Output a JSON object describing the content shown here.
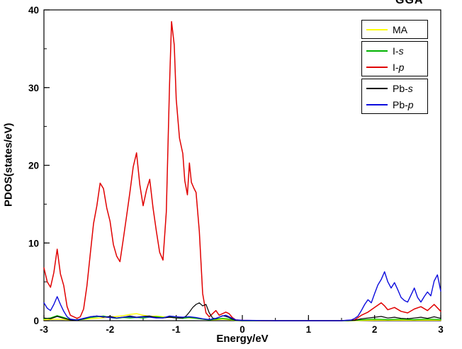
{
  "figure": {
    "annotation_top_right": "GGA",
    "xlabel": "Energy/eV",
    "ylabel": "PDOS(states/eV)"
  },
  "legend": {
    "items": [
      {
        "prefix": "MA",
        "symbol": "",
        "series": 0
      },
      {
        "prefix": "I-",
        "symbol": "s",
        "series": 1
      },
      {
        "prefix": "I-",
        "symbol": "p",
        "series": 2
      },
      {
        "prefix": "Pb-",
        "symbol": "s",
        "series": 3
      },
      {
        "prefix": "Pb-",
        "symbol": "p",
        "series": 4
      }
    ]
  },
  "chart_data": {
    "type": "line",
    "title": "",
    "xlabel": "Energy/eV",
    "ylabel": "PDOS(states/eV)",
    "annotation": "GGA",
    "xlim": [
      -3,
      3
    ],
    "ylim": [
      0,
      40
    ],
    "xticks": [
      -3,
      -2,
      -1,
      0,
      1,
      2,
      3
    ],
    "yticks": [
      0,
      10,
      20,
      30,
      40
    ],
    "x_minor_step": 0.5,
    "y_minor_step": 5,
    "grid": false,
    "legend_position": "upper-right",
    "series": [
      {
        "name": "MA",
        "color": "#ffff00",
        "width": 1.4,
        "points": [
          [
            -3,
            0.12
          ],
          [
            -2.8,
            0.2
          ],
          [
            -2.6,
            0.1
          ],
          [
            -2.4,
            0.18
          ],
          [
            -2.2,
            0.3
          ],
          [
            -2.0,
            0.45
          ],
          [
            -1.9,
            0.55
          ],
          [
            -1.8,
            0.65
          ],
          [
            -1.7,
            0.8
          ],
          [
            -1.6,
            0.9
          ],
          [
            -1.5,
            0.7
          ],
          [
            -1.4,
            0.55
          ],
          [
            -1.3,
            0.6
          ],
          [
            -1.2,
            0.5
          ],
          [
            -1.1,
            0.45
          ],
          [
            -1.0,
            0.5
          ],
          [
            -0.9,
            0.4
          ],
          [
            -0.8,
            0.35
          ],
          [
            -0.7,
            0.3
          ],
          [
            -0.6,
            0.2
          ],
          [
            -0.5,
            0.12
          ],
          [
            -0.4,
            0.12
          ],
          [
            -0.3,
            0.2
          ],
          [
            -0.2,
            0.12
          ],
          [
            -0.1,
            0.05
          ],
          [
            0,
            0
          ],
          [
            1.0,
            0
          ],
          [
            1.6,
            0
          ],
          [
            2.0,
            0.06
          ],
          [
            2.5,
            0.06
          ],
          [
            3.0,
            0.06
          ]
        ]
      },
      {
        "name": "I-s",
        "color": "#00b200",
        "width": 1.4,
        "points": [
          [
            -3,
            0.25
          ],
          [
            -2.9,
            0.35
          ],
          [
            -2.8,
            0.65
          ],
          [
            -2.7,
            0.4
          ],
          [
            -2.6,
            0.12
          ],
          [
            -2.5,
            0.08
          ],
          [
            -2.4,
            0.2
          ],
          [
            -2.3,
            0.4
          ],
          [
            -2.2,
            0.5
          ],
          [
            -2.1,
            0.6
          ],
          [
            -2.0,
            0.4
          ],
          [
            -1.9,
            0.3
          ],
          [
            -1.8,
            0.4
          ],
          [
            -1.7,
            0.35
          ],
          [
            -1.6,
            0.4
          ],
          [
            -1.5,
            0.35
          ],
          [
            -1.4,
            0.45
          ],
          [
            -1.3,
            0.5
          ],
          [
            -1.2,
            0.4
          ],
          [
            -1.1,
            0.5
          ],
          [
            -1.0,
            0.35
          ],
          [
            -0.9,
            0.3
          ],
          [
            -0.8,
            0.4
          ],
          [
            -0.7,
            0.3
          ],
          [
            -0.6,
            0.2
          ],
          [
            -0.5,
            0.1
          ],
          [
            -0.4,
            0.2
          ],
          [
            -0.3,
            0.3
          ],
          [
            -0.2,
            0.2
          ],
          [
            -0.1,
            0.05
          ],
          [
            0,
            0
          ],
          [
            1.0,
            0
          ],
          [
            1.6,
            0
          ],
          [
            1.8,
            0.12
          ],
          [
            2.0,
            0.2
          ],
          [
            2.2,
            0.15
          ],
          [
            2.4,
            0.2
          ],
          [
            2.6,
            0.15
          ],
          [
            2.8,
            0.2
          ],
          [
            3.0,
            0.15
          ]
        ]
      },
      {
        "name": "I-p",
        "color": "#e00000",
        "width": 1.5,
        "points": [
          [
            -3,
            6.8
          ],
          [
            -2.95,
            5.0
          ],
          [
            -2.9,
            4.3
          ],
          [
            -2.85,
            6.2
          ],
          [
            -2.8,
            9.2
          ],
          [
            -2.75,
            6.0
          ],
          [
            -2.7,
            4.5
          ],
          [
            -2.65,
            1.8
          ],
          [
            -2.6,
            0.7
          ],
          [
            -2.5,
            0.3
          ],
          [
            -2.45,
            0.5
          ],
          [
            -2.4,
            1.5
          ],
          [
            -2.35,
            4.5
          ],
          [
            -2.3,
            8.5
          ],
          [
            -2.25,
            12.5
          ],
          [
            -2.2,
            14.8
          ],
          [
            -2.15,
            17.7
          ],
          [
            -2.1,
            17.0
          ],
          [
            -2.05,
            14.5
          ],
          [
            -2.0,
            12.8
          ],
          [
            -1.95,
            9.8
          ],
          [
            -1.9,
            8.3
          ],
          [
            -1.85,
            7.6
          ],
          [
            -1.8,
            10.5
          ],
          [
            -1.75,
            13.5
          ],
          [
            -1.7,
            16.5
          ],
          [
            -1.65,
            19.8
          ],
          [
            -1.6,
            21.6
          ],
          [
            -1.55,
            17.5
          ],
          [
            -1.5,
            14.8
          ],
          [
            -1.45,
            16.8
          ],
          [
            -1.4,
            18.2
          ],
          [
            -1.35,
            14.5
          ],
          [
            -1.3,
            11.5
          ],
          [
            -1.25,
            8.8
          ],
          [
            -1.2,
            7.8
          ],
          [
            -1.15,
            14.0
          ],
          [
            -1.1,
            30.5
          ],
          [
            -1.07,
            38.5
          ],
          [
            -1.03,
            35.5
          ],
          [
            -1.0,
            28.5
          ],
          [
            -0.95,
            23.5
          ],
          [
            -0.9,
            21.5
          ],
          [
            -0.87,
            18.0
          ],
          [
            -0.83,
            16.2
          ],
          [
            -0.8,
            20.3
          ],
          [
            -0.77,
            17.8
          ],
          [
            -0.73,
            17.0
          ],
          [
            -0.7,
            16.5
          ],
          [
            -0.65,
            11.5
          ],
          [
            -0.6,
            3.5
          ],
          [
            -0.55,
            1.0
          ],
          [
            -0.5,
            0.5
          ],
          [
            -0.45,
            0.9
          ],
          [
            -0.4,
            1.3
          ],
          [
            -0.35,
            0.7
          ],
          [
            -0.3,
            0.9
          ],
          [
            -0.25,
            1.1
          ],
          [
            -0.2,
            0.9
          ],
          [
            -0.15,
            0.4
          ],
          [
            -0.1,
            0.1
          ],
          [
            0,
            0.05
          ],
          [
            0.3,
            0
          ],
          [
            1.0,
            0
          ],
          [
            1.5,
            0
          ],
          [
            1.7,
            0.1
          ],
          [
            1.8,
            0.7
          ],
          [
            1.9,
            1.1
          ],
          [
            2.0,
            1.7
          ],
          [
            2.1,
            2.3
          ],
          [
            2.15,
            1.9
          ],
          [
            2.2,
            1.4
          ],
          [
            2.3,
            1.7
          ],
          [
            2.4,
            1.2
          ],
          [
            2.5,
            1.0
          ],
          [
            2.6,
            1.5
          ],
          [
            2.7,
            1.8
          ],
          [
            2.8,
            1.3
          ],
          [
            2.9,
            2.1
          ],
          [
            3.0,
            1.2
          ]
        ]
      },
      {
        "name": "Pb-s",
        "color": "#000000",
        "width": 1.2,
        "points": [
          [
            -3,
            0.35
          ],
          [
            -2.9,
            0.25
          ],
          [
            -2.8,
            0.55
          ],
          [
            -2.7,
            0.3
          ],
          [
            -2.6,
            0.1
          ],
          [
            -2.5,
            0.08
          ],
          [
            -2.4,
            0.25
          ],
          [
            -2.3,
            0.5
          ],
          [
            -2.2,
            0.6
          ],
          [
            -2.1,
            0.45
          ],
          [
            -2.0,
            0.55
          ],
          [
            -1.9,
            0.35
          ],
          [
            -1.8,
            0.45
          ],
          [
            -1.7,
            0.6
          ],
          [
            -1.6,
            0.45
          ],
          [
            -1.5,
            0.55
          ],
          [
            -1.4,
            0.6
          ],
          [
            -1.3,
            0.4
          ],
          [
            -1.2,
            0.35
          ],
          [
            -1.1,
            0.45
          ],
          [
            -1.0,
            0.35
          ],
          [
            -0.9,
            0.35
          ],
          [
            -0.85,
            0.6
          ],
          [
            -0.8,
            1.1
          ],
          [
            -0.75,
            1.7
          ],
          [
            -0.7,
            2.1
          ],
          [
            -0.65,
            2.3
          ],
          [
            -0.6,
            1.9
          ],
          [
            -0.55,
            2.1
          ],
          [
            -0.5,
            1.0
          ],
          [
            -0.45,
            0.35
          ],
          [
            -0.4,
            0.25
          ],
          [
            -0.35,
            0.45
          ],
          [
            -0.3,
            0.65
          ],
          [
            -0.25,
            0.55
          ],
          [
            -0.2,
            0.4
          ],
          [
            -0.15,
            0.2
          ],
          [
            -0.1,
            0.05
          ],
          [
            0,
            0
          ],
          [
            0.5,
            0
          ],
          [
            1.0,
            0
          ],
          [
            1.5,
            0
          ],
          [
            1.7,
            0.05
          ],
          [
            1.8,
            0.25
          ],
          [
            1.9,
            0.35
          ],
          [
            2.0,
            0.45
          ],
          [
            2.1,
            0.55
          ],
          [
            2.2,
            0.35
          ],
          [
            2.3,
            0.45
          ],
          [
            2.4,
            0.3
          ],
          [
            2.5,
            0.25
          ],
          [
            2.6,
            0.35
          ],
          [
            2.7,
            0.45
          ],
          [
            2.8,
            0.3
          ],
          [
            2.9,
            0.5
          ],
          [
            3.0,
            0.3
          ]
        ]
      },
      {
        "name": "Pb-p",
        "color": "#0b0bdd",
        "width": 1.4,
        "points": [
          [
            -3,
            2.3
          ],
          [
            -2.95,
            1.6
          ],
          [
            -2.9,
            1.3
          ],
          [
            -2.85,
            2.1
          ],
          [
            -2.8,
            3.1
          ],
          [
            -2.75,
            2.1
          ],
          [
            -2.7,
            1.2
          ],
          [
            -2.65,
            0.5
          ],
          [
            -2.6,
            0.2
          ],
          [
            -2.5,
            0.1
          ],
          [
            -2.4,
            0.3
          ],
          [
            -2.3,
            0.5
          ],
          [
            -2.2,
            0.6
          ],
          [
            -2.1,
            0.5
          ],
          [
            -2.0,
            0.4
          ],
          [
            -1.9,
            0.35
          ],
          [
            -1.8,
            0.45
          ],
          [
            -1.7,
            0.5
          ],
          [
            -1.6,
            0.4
          ],
          [
            -1.5,
            0.5
          ],
          [
            -1.4,
            0.45
          ],
          [
            -1.3,
            0.35
          ],
          [
            -1.2,
            0.35
          ],
          [
            -1.1,
            0.6
          ],
          [
            -1.0,
            0.5
          ],
          [
            -0.9,
            0.45
          ],
          [
            -0.8,
            0.5
          ],
          [
            -0.7,
            0.4
          ],
          [
            -0.6,
            0.25
          ],
          [
            -0.5,
            0.15
          ],
          [
            -0.4,
            0.3
          ],
          [
            -0.3,
            0.6
          ],
          [
            -0.25,
            0.7
          ],
          [
            -0.2,
            0.5
          ],
          [
            -0.1,
            0.1
          ],
          [
            0,
            0.05
          ],
          [
            0.5,
            0
          ],
          [
            1.0,
            0
          ],
          [
            1.5,
            0
          ],
          [
            1.65,
            0.1
          ],
          [
            1.7,
            0.3
          ],
          [
            1.75,
            0.6
          ],
          [
            1.8,
            1.3
          ],
          [
            1.85,
            2.1
          ],
          [
            1.9,
            2.7
          ],
          [
            1.95,
            2.3
          ],
          [
            2.0,
            3.5
          ],
          [
            2.05,
            4.6
          ],
          [
            2.1,
            5.3
          ],
          [
            2.15,
            6.3
          ],
          [
            2.2,
            5.0
          ],
          [
            2.25,
            4.2
          ],
          [
            2.3,
            4.9
          ],
          [
            2.35,
            4.0
          ],
          [
            2.4,
            3.0
          ],
          [
            2.45,
            2.6
          ],
          [
            2.5,
            2.4
          ],
          [
            2.55,
            3.3
          ],
          [
            2.6,
            4.2
          ],
          [
            2.65,
            3.0
          ],
          [
            2.7,
            2.4
          ],
          [
            2.75,
            3.1
          ],
          [
            2.8,
            3.7
          ],
          [
            2.85,
            3.2
          ],
          [
            2.9,
            5.1
          ],
          [
            2.95,
            5.9
          ],
          [
            3.0,
            3.8
          ]
        ]
      }
    ]
  }
}
